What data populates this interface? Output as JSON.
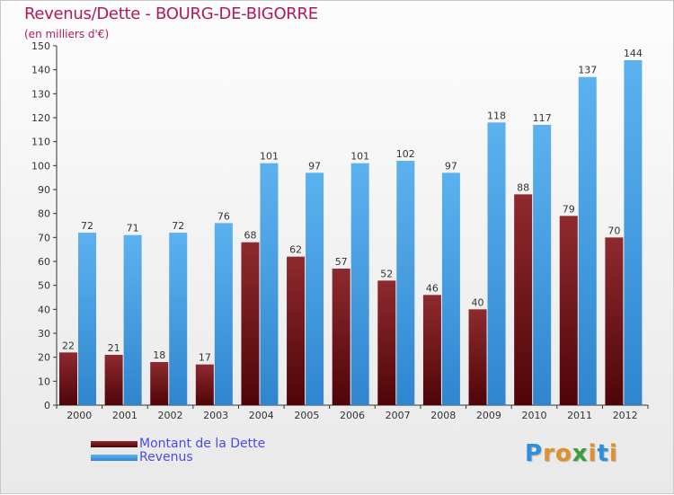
{
  "header": {
    "title": "Revenus/Dette - BOURG-DE-BIGORRE",
    "subtitle": "(en milliers d'€)"
  },
  "legend": {
    "items": [
      {
        "label": "Montant de la Dette",
        "color": "#6b0d10"
      },
      {
        "label": "Revenus",
        "color": "#3f9be0"
      }
    ]
  },
  "logo": {
    "letters": [
      "P",
      "r",
      "o",
      "x",
      "i",
      "t",
      "i"
    ],
    "colors": [
      "#2e8ede",
      "#e2902b",
      "#e2902b",
      "#3a9e3a",
      "#e2902b",
      "#2e8ede",
      "#e2902b"
    ]
  },
  "chart_data": {
    "type": "bar",
    "title": "Revenus/Dette - BOURG-DE-BIGORRE",
    "ylabel": "(en milliers d'€)",
    "xlabel": "",
    "categories": [
      "2000",
      "2001",
      "2002",
      "2003",
      "2004",
      "2005",
      "2006",
      "2007",
      "2008",
      "2009",
      "2010",
      "2011",
      "2012"
    ],
    "series": [
      {
        "name": "Montant de la Dette",
        "values": [
          22,
          21,
          18,
          17,
          68,
          62,
          57,
          52,
          46,
          40,
          88,
          79,
          70
        ]
      },
      {
        "name": "Revenus",
        "values": [
          72,
          71,
          72,
          76,
          101,
          97,
          101,
          102,
          97,
          118,
          117,
          137,
          144
        ]
      }
    ],
    "ylim": [
      0,
      150
    ],
    "yticks": [
      0,
      10,
      20,
      30,
      40,
      50,
      60,
      70,
      80,
      90,
      100,
      110,
      120,
      130,
      140,
      150
    ],
    "grid": false,
    "legend_position": "bottom-left"
  }
}
